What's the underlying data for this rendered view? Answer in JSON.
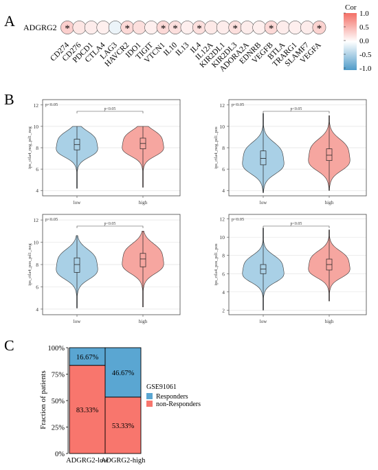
{
  "panels": {
    "a": "A",
    "b": "B",
    "c": "C"
  },
  "colors": {
    "blue": "#4f9bc9",
    "red": "#f36f66",
    "violin_blue": "#a9d0e6",
    "violin_red": "#f6a6a0",
    "bar_blue": "#5aa6d2",
    "bar_red": "#f8766d"
  },
  "chart_data": [
    {
      "type": "heatmap",
      "row_label": "ADGRG2",
      "columns": [
        "CD274",
        "CD276",
        "PDCD1",
        "CTLA4",
        "LAG3",
        "HAVCR2",
        "IDO1",
        "TIGIT",
        "VTCN1",
        "IL10",
        "IL13",
        "IL4",
        "IL12A",
        "KIR2DL1",
        "KIR2DL3",
        "ADORA2A",
        "EDNRB",
        "VEGFB",
        "BTLA",
        "TRARG1",
        "SLAMF7",
        "VEGFA"
      ],
      "values": [
        0.15,
        0.08,
        0.06,
        0.05,
        -0.05,
        0.12,
        0.1,
        0.05,
        0.12,
        0.1,
        0.05,
        0.1,
        0.07,
        0.06,
        0.1,
        0.06,
        0.05,
        0.12,
        0.06,
        0.05,
        0.06,
        0.14
      ],
      "significant": [
        true,
        false,
        false,
        false,
        false,
        true,
        false,
        false,
        true,
        true,
        false,
        true,
        false,
        false,
        true,
        false,
        false,
        true,
        false,
        false,
        false,
        true
      ],
      "mark": "*",
      "legend_title": "Cor",
      "legend_ticks": [
        "1.0",
        "0.5",
        "0.0",
        "-0.5",
        "-1.0"
      ],
      "range": [
        -1,
        1
      ]
    },
    {
      "type": "violin",
      "ylabel": "ips_ctla4_neg_pd1_neg",
      "categories": [
        "low",
        "high"
      ],
      "annotation": "p<0.05",
      "bracket_label": "p<0.05",
      "yticks": [
        4,
        6,
        8,
        10,
        12
      ],
      "ylim": [
        3.5,
        12.5
      ],
      "groups": [
        {
          "q1": 7.8,
          "median": 8.3,
          "q3": 8.8,
          "min": 4.2,
          "max": 10.0,
          "spread": 0.9
        },
        {
          "q1": 7.9,
          "median": 8.4,
          "q3": 8.9,
          "min": 4.3,
          "max": 10.0,
          "spread": 0.9
        }
      ]
    },
    {
      "type": "violin",
      "ylabel": "ips_ctla4_neg_pd1_pos",
      "categories": [
        "low",
        "high"
      ],
      "annotation": "p<0.05",
      "bracket_label": "p<0.05",
      "yticks": [
        4,
        6,
        8,
        10,
        12
      ],
      "ylim": [
        3.5,
        12.5
      ],
      "groups": [
        {
          "q1": 6.4,
          "median": 7.0,
          "q3": 7.7,
          "min": 3.8,
          "max": 11.2,
          "spread": 1.1
        },
        {
          "q1": 6.8,
          "median": 7.3,
          "q3": 7.9,
          "min": 4.0,
          "max": 11.0,
          "spread": 1.1
        }
      ]
    },
    {
      "type": "violin",
      "ylabel": "ips_ctla4_pos_pd1_neg",
      "categories": [
        "low",
        "high"
      ],
      "annotation": "p<0.05",
      "bracket_label": "p<0.05",
      "yticks": [
        4,
        6,
        8,
        10,
        12
      ],
      "ylim": [
        3.5,
        12.5
      ],
      "groups": [
        {
          "q1": 7.3,
          "median": 8.0,
          "q3": 8.6,
          "min": 4.1,
          "max": 10.6,
          "spread": 1.0
        },
        {
          "q1": 7.8,
          "median": 8.5,
          "q3": 9.0,
          "min": 4.2,
          "max": 11.0,
          "spread": 1.0
        }
      ]
    },
    {
      "type": "violin",
      "ylabel": "ips_ctla4_pos_pd1_pos",
      "categories": [
        "low",
        "high"
      ],
      "annotation": "p<0.05",
      "bracket_label": "p<0.05",
      "yticks": [
        2,
        4,
        6,
        8,
        10,
        12
      ],
      "ylim": [
        1.5,
        12.5
      ],
      "groups": [
        {
          "q1": 6.0,
          "median": 6.5,
          "q3": 7.0,
          "min": 2.0,
          "max": 11.0,
          "spread": 1.1
        },
        {
          "q1": 6.4,
          "median": 7.0,
          "q3": 7.6,
          "min": 3.0,
          "max": 10.8,
          "spread": 1.1
        }
      ]
    },
    {
      "type": "bar",
      "stacked": true,
      "categories": [
        "ADGRG2-low",
        "ADGRG2-high"
      ],
      "ylabel": "Fraction of patients",
      "yticks": [
        "0%",
        "25%",
        "50%",
        "75%",
        "100%"
      ],
      "series": [
        {
          "name": "non-Responders",
          "values": [
            83.33,
            53.33
          ],
          "labels": [
            "83.33%",
            "53.33%"
          ]
        },
        {
          "name": "Responders",
          "values": [
            16.67,
            46.67
          ],
          "labels": [
            "16.67%",
            "46.67%"
          ]
        }
      ],
      "legend_title": "GSE91061",
      "legend_entries": [
        "Responders",
        "non-Responders"
      ]
    }
  ]
}
